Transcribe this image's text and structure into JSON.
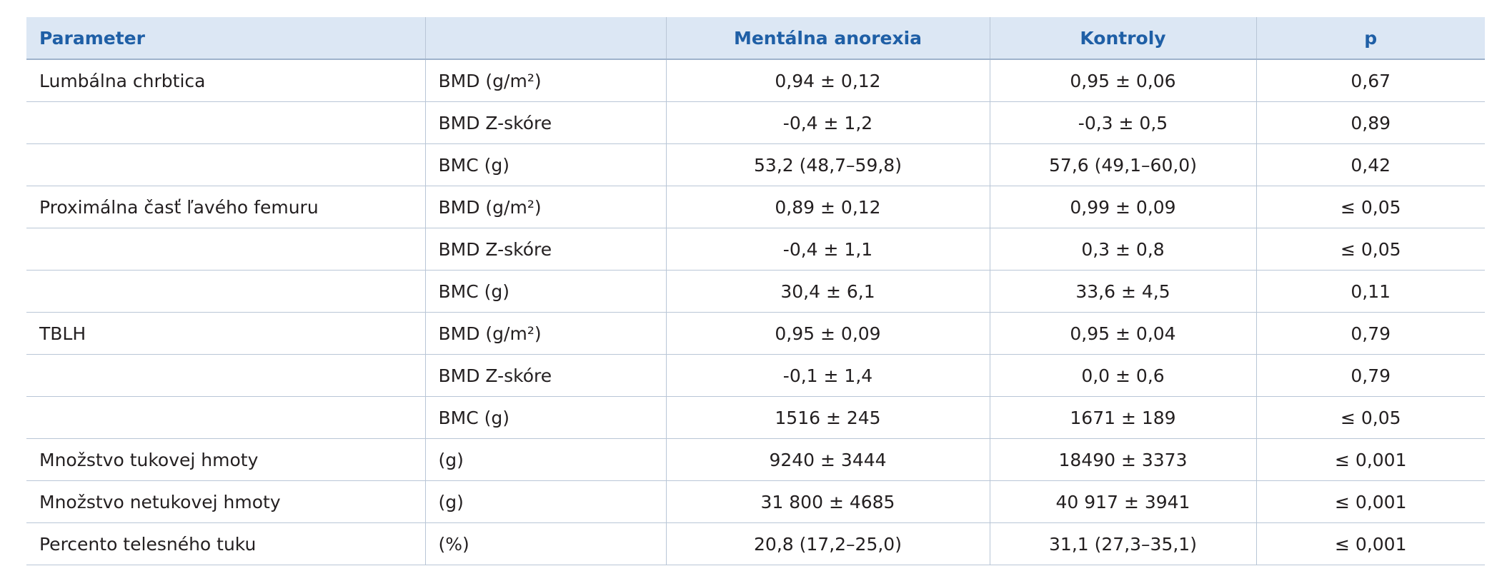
{
  "table": {
    "header": {
      "parameter": "Parameter",
      "anorexia": "Mentálna anorexia",
      "controls": "Kontroly",
      "p": "p"
    },
    "rows": [
      {
        "parameter": "Lumbálna chrbtica",
        "measure": "BMD (g/m²)",
        "anorexia": "0,94 ± 0,12",
        "controls": "0,95 ± 0,06",
        "p": "0,67"
      },
      {
        "measure": "BMD Z-skóre",
        "anorexia": "-0,4 ± 1,2",
        "controls": "-0,3 ± 0,5",
        "p": "0,89"
      },
      {
        "measure": "BMC (g)",
        "anorexia": "53,2 (48,7–59,8)",
        "controls": "57,6 (49,1–60,0)",
        "p": "0,42"
      },
      {
        "parameter": "Proximálna časť ľavého femuru",
        "measure": "BMD (g/m²)",
        "anorexia": "0,89 ± 0,12",
        "controls": "0,99 ± 0,09",
        "p": "≤ 0,05"
      },
      {
        "measure": "BMD Z-skóre",
        "anorexia": "-0,4 ± 1,1",
        "controls": "0,3 ± 0,8",
        "p": "≤ 0,05"
      },
      {
        "measure": "BMC (g)",
        "anorexia": "30,4 ± 6,1",
        "controls": "33,6 ± 4,5",
        "p": "0,11"
      },
      {
        "parameter": "TBLH",
        "measure": "BMD (g/m²)",
        "anorexia": "0,95 ± 0,09",
        "controls": "0,95 ± 0,04",
        "p": "0,79"
      },
      {
        "measure": "BMD Z-skóre",
        "anorexia": "-0,1 ± 1,4",
        "controls": "0,0 ± 0,6",
        "p": "0,79"
      },
      {
        "measure": "BMC (g)",
        "anorexia": "1516 ± 245",
        "controls": "1671 ± 189",
        "p": "≤ 0,05"
      },
      {
        "parameter": "Množstvo tukovej hmoty",
        "measure": "(g)",
        "anorexia": "9240 ± 3444",
        "controls": "18490 ± 3373",
        "p": "≤ 0,001"
      },
      {
        "parameter": "Množstvo netukovej hmoty",
        "measure": "(g)",
        "anorexia": "31 800 ± 4685",
        "controls": "40 917 ± 3941",
        "p": "≤ 0,001"
      },
      {
        "parameter": "Percento telesného tuku",
        "measure": "(%)",
        "anorexia": "20,8 (17,2–25,0)",
        "controls": "31,1 (27,3–35,1)",
        "p": "≤ 0,001"
      }
    ]
  }
}
